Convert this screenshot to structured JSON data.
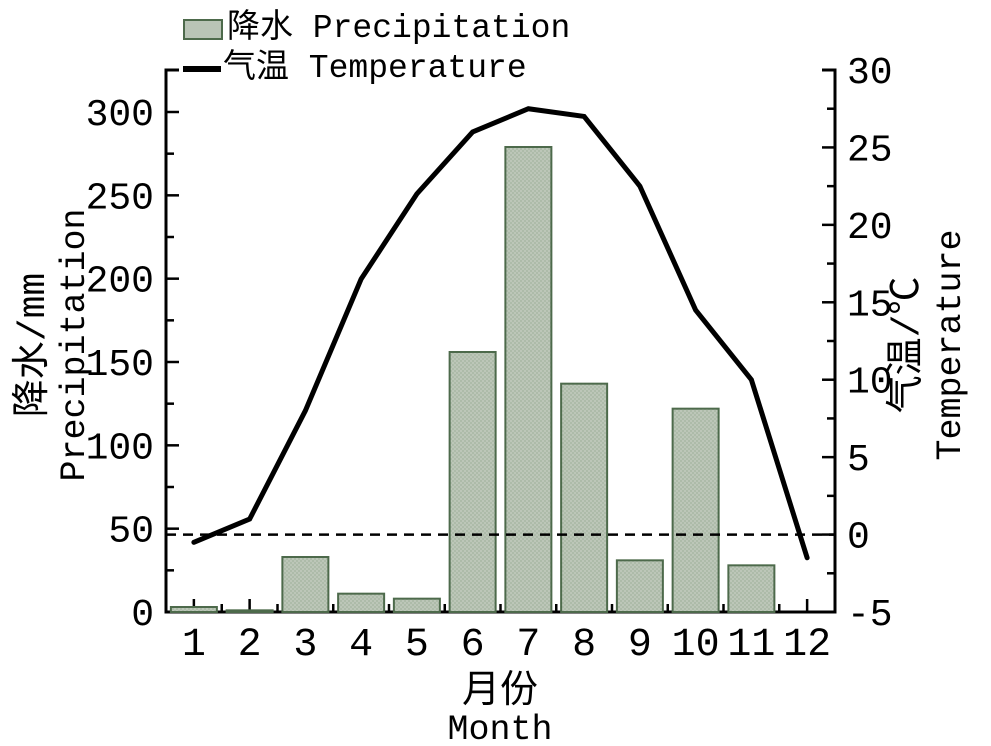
{
  "legend": {
    "precipitation_label": "降水 Precipitation",
    "temperature_label": "气温 Temperature"
  },
  "axes": {
    "left_title_cn": "降水/mm",
    "left_title_en": "Precipitation",
    "right_title_cn": "气温/℃",
    "right_title_en": "Temperature",
    "x_title_cn": "月份",
    "x_title_en": "Month"
  },
  "colors": {
    "bar_fill": "#b9c4b6",
    "bar_fill_dot": "#aab9a6",
    "bar_border": "#4d6a4b",
    "temperature_line": "#000000",
    "axis": "#000000",
    "background": "#ffffff"
  },
  "chart_data": {
    "type": "bar",
    "subtype": "climate-combo-bar-line",
    "categories": [
      "1",
      "2",
      "3",
      "4",
      "5",
      "6",
      "7",
      "8",
      "9",
      "10",
      "11",
      "12"
    ],
    "series": [
      {
        "name": "降水 Precipitation",
        "type": "bar",
        "axis": "left",
        "unit": "mm",
        "values": [
          3,
          1,
          33,
          11,
          8,
          156,
          279,
          137,
          31,
          122,
          28,
          0
        ]
      },
      {
        "name": "气温 Temperature",
        "type": "line",
        "axis": "right",
        "unit": "°C",
        "values": [
          -0.5,
          1,
          8,
          16.5,
          22,
          26,
          27.5,
          27,
          22.5,
          14.5,
          10,
          -1.5
        ]
      }
    ],
    "left_axis": {
      "label": "降水/mm Precipitation",
      "min": 0,
      "max": 300,
      "major_ticks": [
        0,
        50,
        100,
        150,
        200,
        250,
        300
      ],
      "tick_labels": [
        "0",
        "50",
        "100",
        "150",
        "200",
        "250",
        "300"
      ],
      "minor_ticks": [
        25,
        75,
        125,
        175,
        225,
        275
      ]
    },
    "right_axis": {
      "label": "气温/℃ Temperature",
      "min": -5,
      "max": 30,
      "major_ticks": [
        -5,
        0,
        5,
        10,
        15,
        20,
        25,
        30
      ],
      "tick_labels": [
        "-5",
        "0",
        "5",
        "10",
        "15",
        "20",
        "25",
        "30"
      ],
      "minor_ticks": [
        -2.5,
        2.5,
        7.5,
        12.5,
        17.5,
        22.5,
        27.5
      ]
    },
    "x_axis": {
      "label": "月份 Month",
      "tick_labels": [
        "1",
        "2",
        "3",
        "4",
        "5",
        "6",
        "7",
        "8",
        "9",
        "10",
        "11",
        "12"
      ]
    },
    "annotations": [
      {
        "type": "hline",
        "axis": "right",
        "value": 0,
        "style": "dashed"
      }
    ],
    "grid": false,
    "legend_position": "top-left"
  }
}
